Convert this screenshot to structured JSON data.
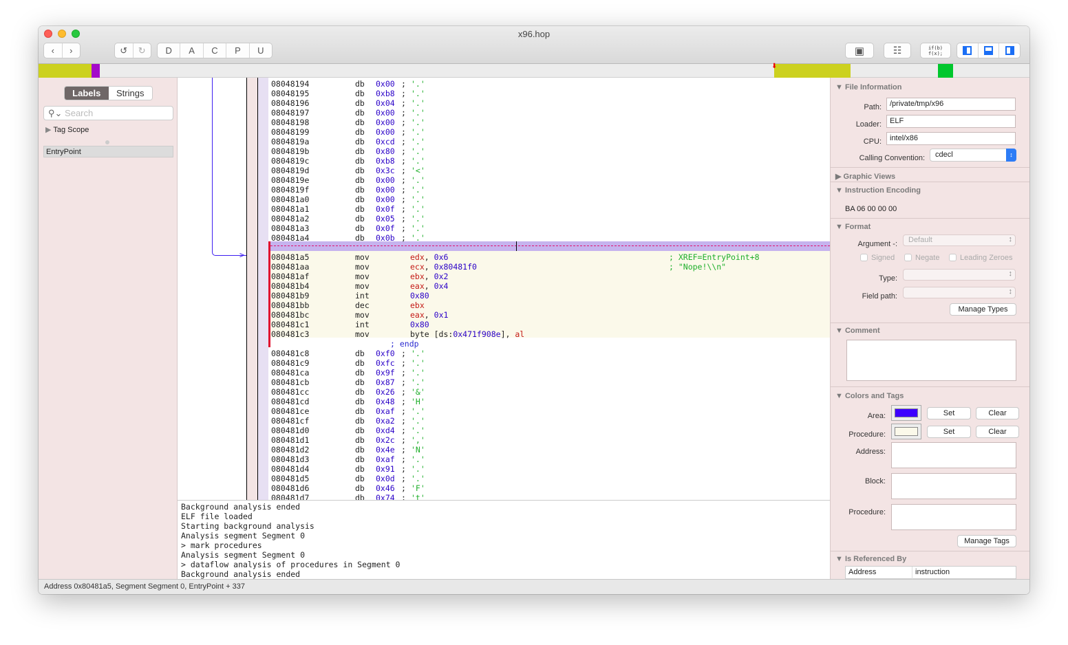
{
  "window": {
    "title": "x96.hop"
  },
  "toolbar": {
    "nav": [
      "back-icon",
      "forward-icon"
    ],
    "undo": [
      "undo-icon",
      "redo-icon"
    ],
    "modes": [
      "D",
      "A",
      "C",
      "P",
      "U"
    ],
    "right_icons": [
      "cpu-icon",
      "graph-view-icon",
      "pseudo-code-icon"
    ],
    "pseudo_code_label": "if(b)\nf(x);",
    "panel_toggles": [
      "left-panel-icon",
      "bottom-panel-icon",
      "right-panel-icon"
    ]
  },
  "colors": {
    "strip_yellow": "#ccd11f",
    "strip_purple": "#a40ac9",
    "strip_green": "#00c72d",
    "area": "#3d00ff",
    "procedure": "#fbf9ea"
  },
  "sidebar": {
    "tabs": [
      "Labels",
      "Strings"
    ],
    "active_tab": "Labels",
    "search_placeholder": "Search",
    "tag_scope": "Tag Scope",
    "labels": [
      "EntryPoint"
    ]
  },
  "code": {
    "pre_rows": [
      [
        "08048194",
        "0x00",
        "'.'"
      ],
      [
        "08048195",
        "0xb8",
        "'.'"
      ],
      [
        "08048196",
        "0x04",
        "'.'"
      ],
      [
        "08048197",
        "0x00",
        "'.'"
      ],
      [
        "08048198",
        "0x00",
        "'.'"
      ],
      [
        "08048199",
        "0x00",
        "'.'"
      ],
      [
        "0804819a",
        "0xcd",
        "'.'"
      ],
      [
        "0804819b",
        "0x80",
        "'.'"
      ],
      [
        "0804819c",
        "0xb8",
        "'.'"
      ],
      [
        "0804819d",
        "0x3c",
        "'<'"
      ],
      [
        "0804819e",
        "0x00",
        "'.'"
      ],
      [
        "0804819f",
        "0x00",
        "'.'"
      ],
      [
        "080481a0",
        "0x00",
        "'.'"
      ],
      [
        "080481a1",
        "0x0f",
        "'.'"
      ],
      [
        "080481a2",
        "0x05",
        "'.'"
      ],
      [
        "080481a3",
        "0x0f",
        "'.'"
      ],
      [
        "080481a4",
        "0x0b",
        "'.'"
      ]
    ],
    "db_mnemonic": "db",
    "procedure": [
      {
        "addr": "080481a5",
        "mnem": "mov",
        "ops": [
          [
            "reg",
            "edx"
          ],
          [
            "plain",
            ", "
          ],
          [
            "num",
            "0x6"
          ]
        ],
        "comment": "; XREF=EntryPoint+8"
      },
      {
        "addr": "080481aa",
        "mnem": "mov",
        "ops": [
          [
            "reg",
            "ecx"
          ],
          [
            "plain",
            ", "
          ],
          [
            "num",
            "0x80481f0"
          ]
        ],
        "comment": "; \"Nope!\\\\n\""
      },
      {
        "addr": "080481af",
        "mnem": "mov",
        "ops": [
          [
            "reg",
            "ebx"
          ],
          [
            "plain",
            ", "
          ],
          [
            "num",
            "0x2"
          ]
        ]
      },
      {
        "addr": "080481b4",
        "mnem": "mov",
        "ops": [
          [
            "reg",
            "eax"
          ],
          [
            "plain",
            ", "
          ],
          [
            "num",
            "0x4"
          ]
        ]
      },
      {
        "addr": "080481b9",
        "mnem": "int",
        "ops": [
          [
            "num",
            "0x80"
          ]
        ]
      },
      {
        "addr": "080481bb",
        "mnem": "dec",
        "ops": [
          [
            "reg",
            "ebx"
          ]
        ]
      },
      {
        "addr": "080481bc",
        "mnem": "mov",
        "ops": [
          [
            "reg",
            "eax"
          ],
          [
            "plain",
            ", "
          ],
          [
            "num",
            "0x1"
          ]
        ]
      },
      {
        "addr": "080481c1",
        "mnem": "int",
        "ops": [
          [
            "num",
            "0x80"
          ]
        ]
      },
      {
        "addr": "080481c3",
        "mnem": "mov",
        "ops": [
          [
            "plain",
            "byte [ds:"
          ],
          [
            "num",
            "0x471f908e"
          ],
          [
            "plain",
            "], "
          ],
          [
            "reg",
            "al"
          ]
        ]
      }
    ],
    "endp": "; endp",
    "post_rows": [
      [
        "080481c8",
        "0xf0",
        "'.'"
      ],
      [
        "080481c9",
        "0xfc",
        "'.'"
      ],
      [
        "080481ca",
        "0x9f",
        "'.'"
      ],
      [
        "080481cb",
        "0x87",
        "'.'"
      ],
      [
        "080481cc",
        "0x26",
        "'&'"
      ],
      [
        "080481cd",
        "0x48",
        "'H'"
      ],
      [
        "080481ce",
        "0xaf",
        "'.'"
      ],
      [
        "080481cf",
        "0xa2",
        "'.'"
      ],
      [
        "080481d0",
        "0xd4",
        "'.'"
      ],
      [
        "080481d1",
        "0x2c",
        "','"
      ],
      [
        "080481d2",
        "0x4e",
        "'N'"
      ],
      [
        "080481d3",
        "0xaf",
        "'.'"
      ],
      [
        "080481d4",
        "0x91",
        "'.'"
      ],
      [
        "080481d5",
        "0x0d",
        "'.'"
      ],
      [
        "080481d6",
        "0x46",
        "'F'"
      ],
      [
        "080481d7",
        "0x74",
        "'t'"
      ]
    ]
  },
  "log": [
    "Background analysis ended",
    "ELF file loaded",
    "Starting background analysis",
    "Analysis segment Segment 0",
    "> mark procedures",
    "Analysis segment Segment 0",
    "> dataflow analysis of procedures in Segment 0",
    "Background analysis ended"
  ],
  "inspector": {
    "file_info": {
      "title": "File Information",
      "path_label": "Path:",
      "path": "/private/tmp/x96",
      "loader_label": "Loader:",
      "loader": "ELF",
      "cpu_label": "CPU:",
      "cpu": "intel/x86",
      "cc_label": "Calling Convention:",
      "cc": "cdecl"
    },
    "graphic_views": "Graphic Views",
    "encoding": {
      "title": "Instruction Encoding",
      "bytes": "BA 06 00 00 00"
    },
    "format": {
      "title": "Format",
      "argument_label": "Argument -:",
      "argument": "Default",
      "signed": "Signed",
      "negate": "Negate",
      "leading": "Leading Zeroes",
      "type_label": "Type:",
      "field_label": "Field path:",
      "manage": "Manage Types"
    },
    "comment": {
      "title": "Comment"
    },
    "colors_tags": {
      "title": "Colors and Tags",
      "area_label": "Area:",
      "proc_label": "Procedure:",
      "set": "Set",
      "clear": "Clear",
      "address_label": "Address:",
      "block_label": "Block:",
      "procedure_label": "Procedure:",
      "manage": "Manage Tags"
    },
    "referenced": {
      "title": "Is Referenced By",
      "columns": [
        "Address",
        "instruction"
      ]
    }
  },
  "status": "Address 0x80481a5, Segment Segment 0, EntryPoint + 337"
}
